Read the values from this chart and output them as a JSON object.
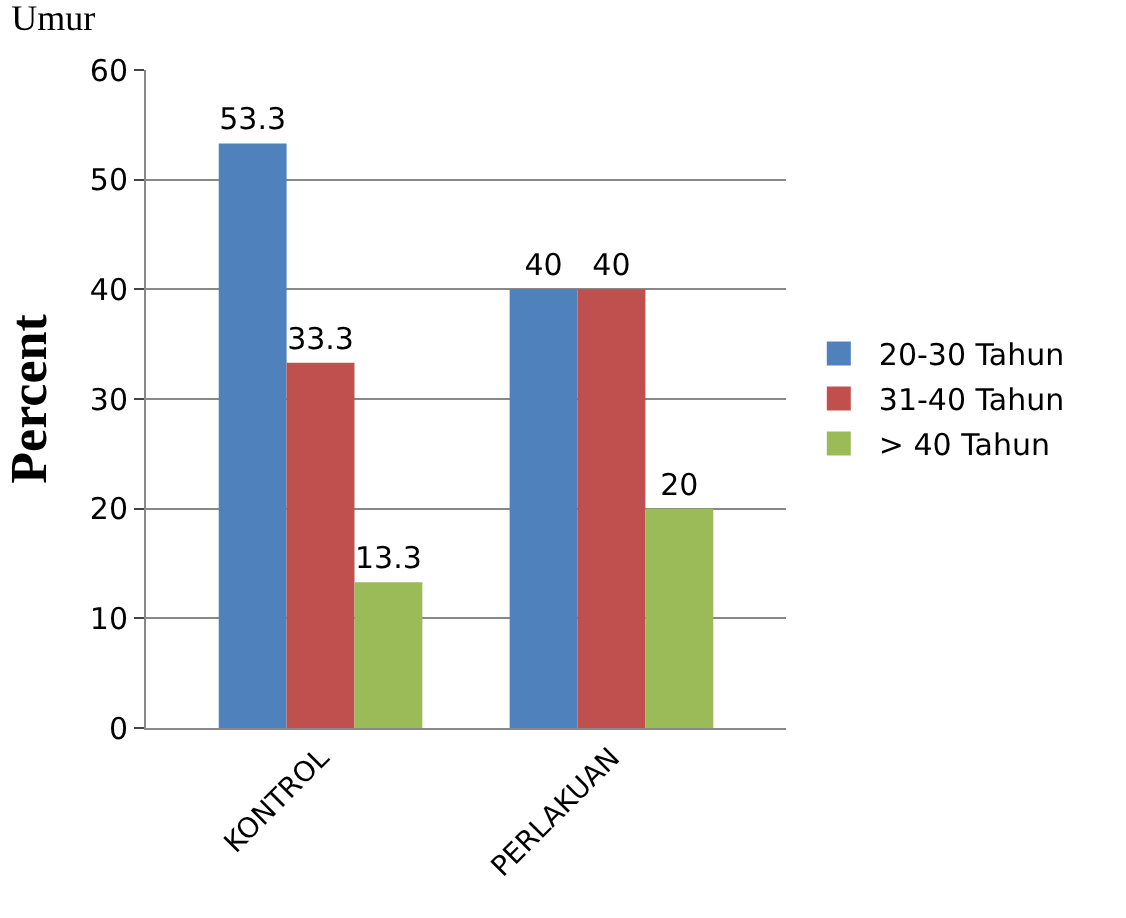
{
  "chart_data": {
    "type": "bar",
    "title": "Umur",
    "ylabel": "Percent",
    "categories": [
      "KONTROL",
      "PERLAKUAN"
    ],
    "series": [
      {
        "name": "20-30 Tahun",
        "color": "#4f81bd",
        "values": [
          53.3,
          40
        ]
      },
      {
        "name": "31-40 Tahun",
        "color": "#c0504d",
        "values": [
          33.3,
          40
        ]
      },
      {
        "name": "> 40 Tahun",
        "color": "#9bbb59",
        "values": [
          13.3,
          20
        ]
      }
    ],
    "ylim": [
      0,
      60
    ],
    "yticks": [
      0,
      10,
      20,
      30,
      40,
      50,
      60
    ],
    "grid": "y",
    "legend": "right",
    "data_labels": true
  }
}
